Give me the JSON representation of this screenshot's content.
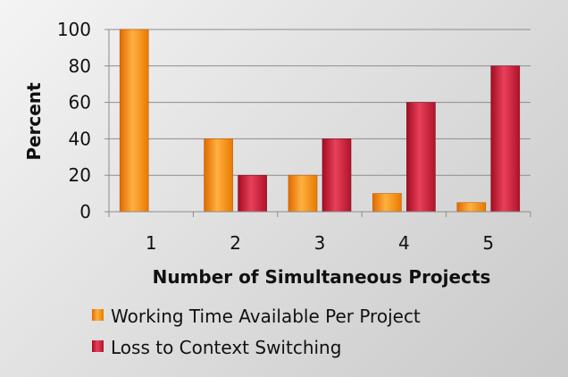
{
  "chart_data": {
    "type": "bar",
    "xlabel": "Number of Simultaneous Projects",
    "ylabel": "Percent",
    "categories": [
      "1",
      "2",
      "3",
      "4",
      "5"
    ],
    "ylim": [
      0,
      100
    ],
    "yticks": [
      0,
      20,
      40,
      60,
      80,
      100
    ],
    "grid": true,
    "legend_position": "bottom",
    "series": [
      {
        "name": "Working Time Available Per Project",
        "values": [
          100,
          40,
          20,
          10,
          5
        ],
        "color": "#ff8c00"
      },
      {
        "name": "Loss to Context Switching",
        "values": [
          0,
          20,
          40,
          60,
          80
        ],
        "color": "#c8102e"
      }
    ]
  }
}
